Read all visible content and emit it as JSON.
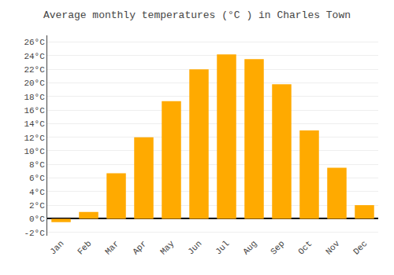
{
  "chart_data": {
    "type": "bar",
    "title": "Average monthly temperatures (°C ) in Charles Town",
    "categories": [
      "Jan",
      "Feb",
      "Mar",
      "Apr",
      "May",
      "Jun",
      "Jul",
      "Aug",
      "Sep",
      "Oct",
      "Nov",
      "Dec"
    ],
    "values": [
      -0.5,
      1.0,
      6.7,
      12.0,
      17.3,
      22.0,
      24.2,
      23.5,
      19.8,
      13.0,
      7.5,
      2.0
    ],
    "color": "#FFAA00",
    "ylim": [
      -2.5,
      27
    ],
    "yticks": [
      {
        "value": -2,
        "label": "-2°C"
      },
      {
        "value": 0,
        "label": "0°C"
      },
      {
        "value": 2,
        "label": "2°C"
      },
      {
        "value": 4,
        "label": "4°C"
      },
      {
        "value": 6,
        "label": "6°C"
      },
      {
        "value": 8,
        "label": "8°C"
      },
      {
        "value": 10,
        "label": "10°C"
      },
      {
        "value": 12,
        "label": "12°C"
      },
      {
        "value": 14,
        "label": "14°C"
      },
      {
        "value": 16,
        "label": "16°C"
      },
      {
        "value": 18,
        "label": "18°C"
      },
      {
        "value": 20,
        "label": "20°C"
      },
      {
        "value": 22,
        "label": "22°C"
      },
      {
        "value": 24,
        "label": "24°C"
      },
      {
        "value": 26,
        "label": "26°C"
      }
    ],
    "grid": true
  }
}
